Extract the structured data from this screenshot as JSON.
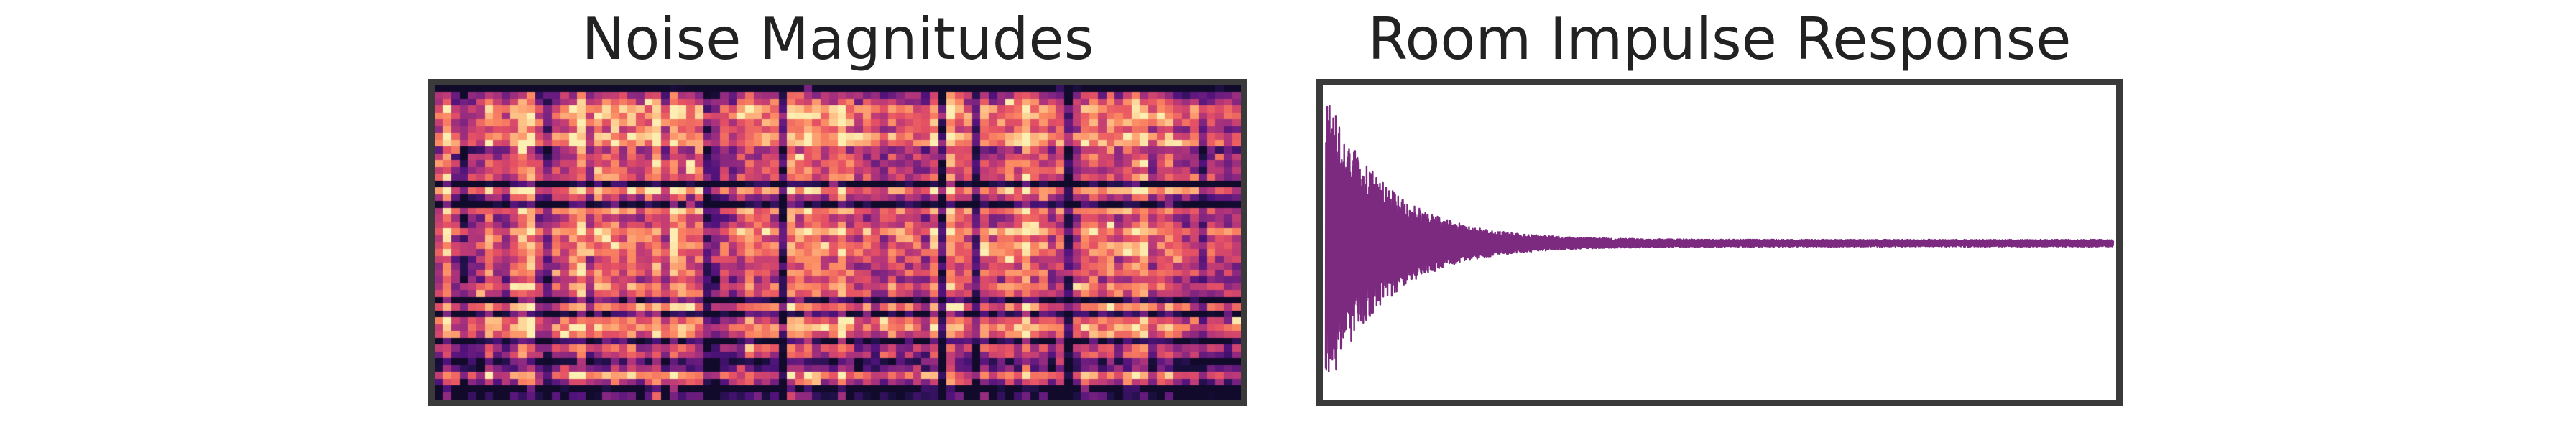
{
  "chart_data": [
    {
      "type": "heatmap",
      "title": "Noise Magnitudes",
      "xlabel": "",
      "ylabel": "",
      "colormap": "magma",
      "axes_visible": false,
      "grid": false,
      "frame_color": "#3a3a3a"
    },
    {
      "type": "line",
      "title": "Room Impulse Response",
      "xlabel": "",
      "ylabel": "",
      "axes_visible": false,
      "grid": false,
      "line_color": "#7b2a7f",
      "frame_color": "#3a3a3a",
      "signal": "exponentially decaying oscillation"
    }
  ]
}
